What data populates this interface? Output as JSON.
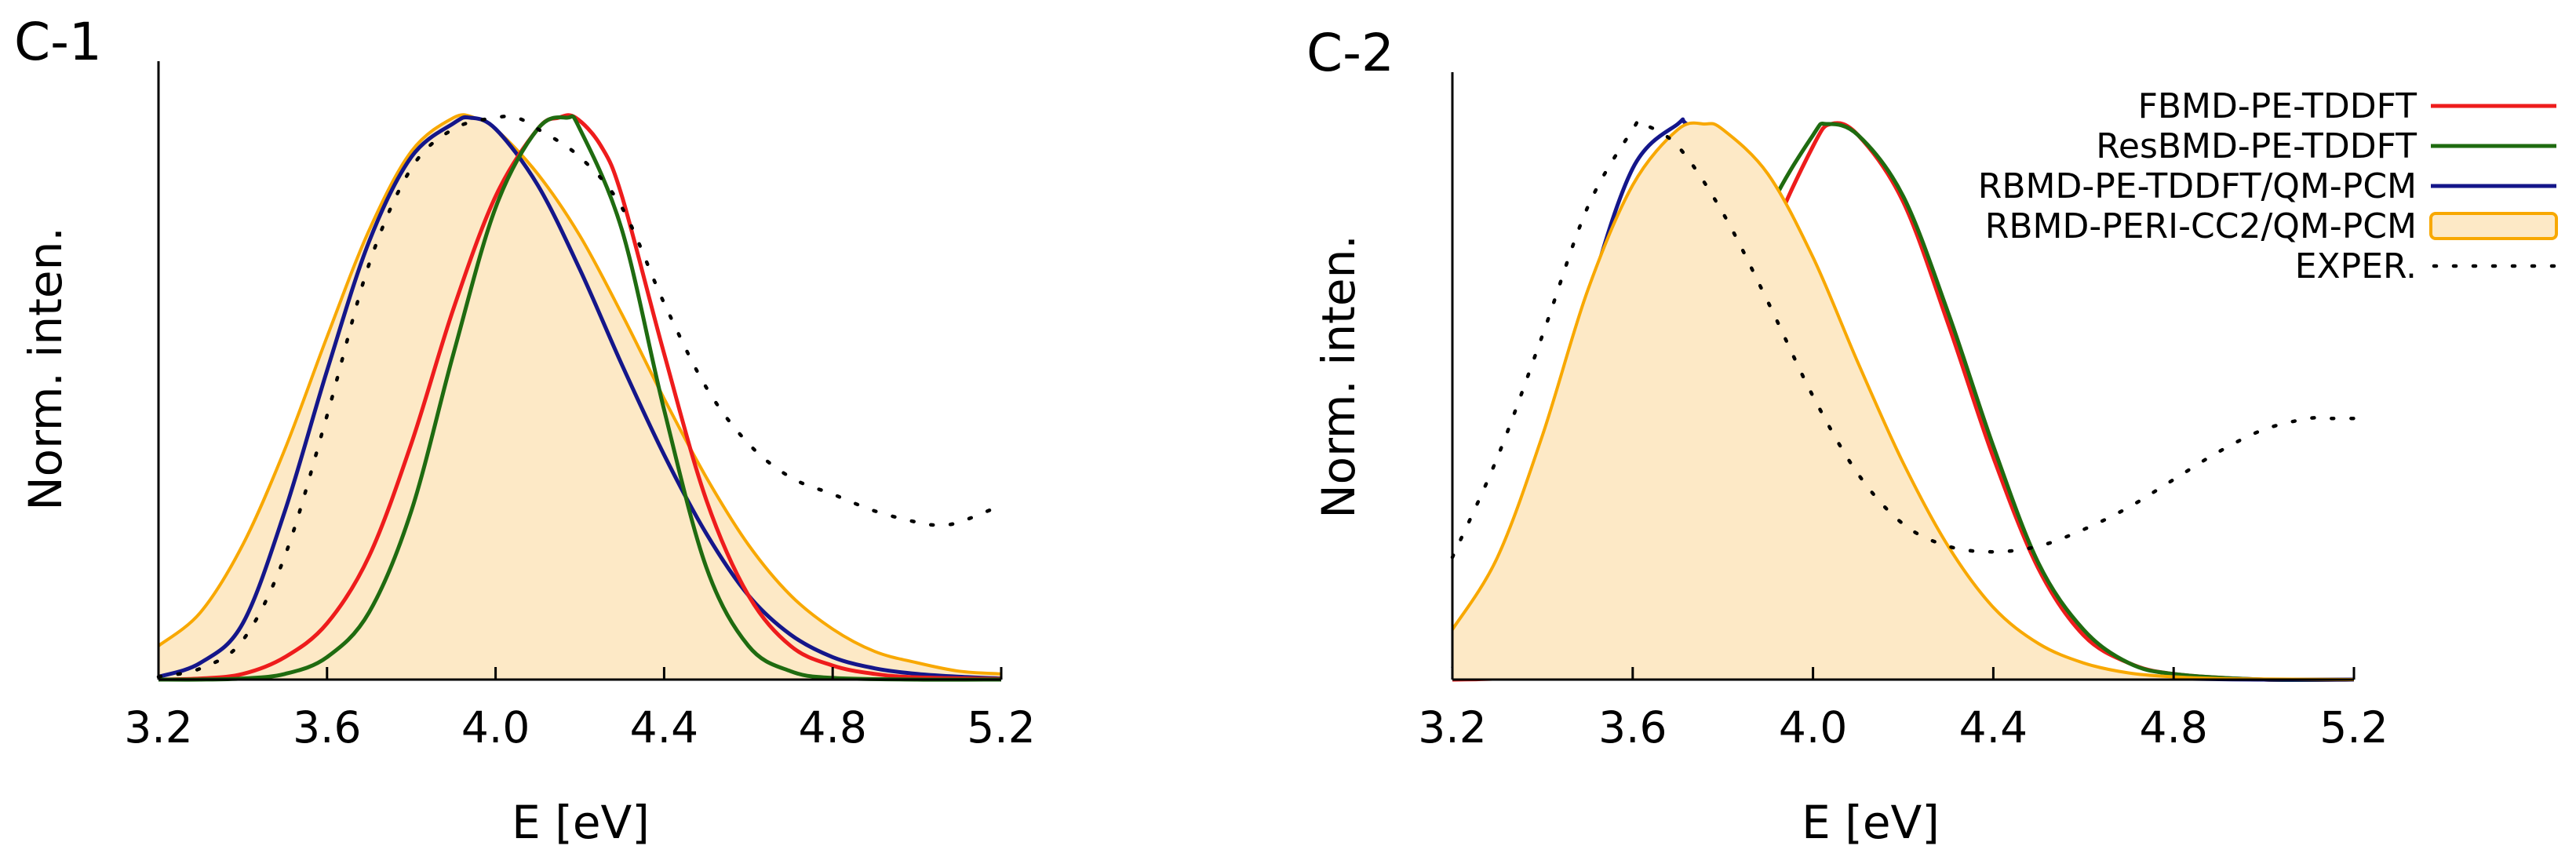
{
  "colors": {
    "FBMD": "#ee1c1c",
    "ResBMD": "#1f6b10",
    "RBMD": "#14168a",
    "RBMD_PERI": "#f8a800",
    "RBMD_PERI_fill": "#fde9c6",
    "EXPER": "#000000"
  },
  "chart_data": [
    {
      "panel": "C-1",
      "type": "line",
      "title": "C-1",
      "xlabel": "E [eV]",
      "ylabel": "Norm. inten.",
      "xlim": [
        3.2,
        5.2
      ],
      "ylim": [
        0,
        1
      ],
      "xticks": [
        "3.2",
        "3.6",
        "4.0",
        "4.4",
        "4.8",
        "5.2"
      ],
      "legend": null,
      "series": [
        {
          "name": "RBMD-PERI-CC2/QM-PCM",
          "key": "RBMD_PERI",
          "style": "filled",
          "x": [
            3.2,
            3.3,
            3.4,
            3.5,
            3.6,
            3.7,
            3.8,
            3.9,
            3.95,
            4.0,
            4.1,
            4.2,
            4.3,
            4.4,
            4.5,
            4.6,
            4.7,
            4.8,
            4.9,
            5.0,
            5.1,
            5.2
          ],
          "y": [
            0.06,
            0.12,
            0.24,
            0.41,
            0.61,
            0.8,
            0.94,
            1.0,
            1.0,
            0.98,
            0.9,
            0.79,
            0.65,
            0.5,
            0.36,
            0.24,
            0.15,
            0.09,
            0.05,
            0.03,
            0.015,
            0.01
          ]
        },
        {
          "name": "RBMD-PE-TDDFT/QM-PCM",
          "key": "RBMD",
          "style": "solid",
          "x": [
            3.2,
            3.3,
            3.4,
            3.5,
            3.6,
            3.7,
            3.8,
            3.9,
            3.94,
            4.0,
            4.1,
            4.2,
            4.3,
            4.4,
            4.5,
            4.6,
            4.7,
            4.8,
            4.9,
            5.0,
            5.1,
            5.2
          ],
          "y": [
            0.005,
            0.03,
            0.1,
            0.3,
            0.55,
            0.78,
            0.93,
            0.99,
            1.0,
            0.98,
            0.88,
            0.73,
            0.56,
            0.4,
            0.26,
            0.15,
            0.08,
            0.04,
            0.02,
            0.01,
            0.005,
            0.002
          ]
        },
        {
          "name": "FBMD-PE-TDDFT",
          "key": "FBMD",
          "style": "solid",
          "x": [
            3.2,
            3.3,
            3.4,
            3.5,
            3.6,
            3.7,
            3.8,
            3.9,
            4.0,
            4.1,
            4.15,
            4.19,
            4.25,
            4.3,
            4.4,
            4.5,
            4.6,
            4.7,
            4.8,
            4.9,
            5.0,
            5.2
          ],
          "y": [
            0,
            0.002,
            0.01,
            0.04,
            0.1,
            0.22,
            0.42,
            0.66,
            0.86,
            0.98,
            1.0,
            1.0,
            0.95,
            0.86,
            0.58,
            0.32,
            0.15,
            0.06,
            0.025,
            0.01,
            0.004,
            0.001
          ]
        },
        {
          "name": "ResBMD-PE-TDDFT",
          "key": "ResBMD",
          "style": "solid",
          "x": [
            3.2,
            3.3,
            3.4,
            3.5,
            3.6,
            3.7,
            3.8,
            3.9,
            4.0,
            4.1,
            4.17,
            4.2,
            4.3,
            4.4,
            4.5,
            4.6,
            4.7,
            4.8,
            5.0,
            5.2
          ],
          "y": [
            0,
            0.0,
            0.002,
            0.01,
            0.04,
            0.12,
            0.3,
            0.58,
            0.84,
            0.98,
            1.0,
            0.98,
            0.8,
            0.48,
            0.2,
            0.06,
            0.015,
            0.003,
            0.0,
            0.0
          ]
        },
        {
          "name": "EXPER.",
          "key": "EXPER",
          "style": "dotted",
          "x": [
            3.2,
            3.3,
            3.4,
            3.5,
            3.6,
            3.7,
            3.8,
            3.9,
            4.0,
            4.05,
            4.1,
            4.2,
            4.3,
            4.4,
            4.5,
            4.6,
            4.7,
            4.8,
            4.9,
            5.0,
            5.05,
            5.1,
            5.2
          ],
          "y": [
            0.005,
            0.02,
            0.07,
            0.22,
            0.47,
            0.74,
            0.91,
            0.98,
            1.0,
            1.0,
            0.98,
            0.93,
            0.84,
            0.67,
            0.52,
            0.42,
            0.36,
            0.33,
            0.3,
            0.28,
            0.275,
            0.28,
            0.31
          ]
        }
      ]
    },
    {
      "panel": "C-2",
      "type": "line",
      "title": "C-2",
      "xlabel": "E [eV]",
      "ylabel": "Norm. inten.",
      "xlim": [
        3.2,
        5.2
      ],
      "ylim": [
        0,
        1
      ],
      "xticks": [
        "3.2",
        "3.6",
        "4.0",
        "4.4",
        "4.8",
        "5.2"
      ],
      "legend": "top-right",
      "series": [
        {
          "name": "FBMD-PE-TDDFT",
          "key": "FBMD",
          "style": "solid",
          "x": [
            3.2,
            3.3,
            3.4,
            3.5,
            3.6,
            3.7,
            3.8,
            3.9,
            4.0,
            4.04,
            4.1,
            4.2,
            4.3,
            4.4,
            4.5,
            4.6,
            4.7,
            4.8,
            5.0,
            5.2
          ],
          "y": [
            0.0,
            0.002,
            0.01,
            0.04,
            0.12,
            0.28,
            0.52,
            0.78,
            0.96,
            1.0,
            0.98,
            0.86,
            0.64,
            0.4,
            0.2,
            0.08,
            0.03,
            0.01,
            0.0,
            0.0
          ]
        },
        {
          "name": "ResBMD-PE-TDDFT",
          "key": "ResBMD",
          "style": "solid",
          "x": [
            3.2,
            3.3,
            3.4,
            3.5,
            3.6,
            3.7,
            3.8,
            3.9,
            4.0,
            4.03,
            4.1,
            4.2,
            4.3,
            4.4,
            4.5,
            4.6,
            4.7,
            4.8,
            5.0,
            5.2
          ],
          "y": [
            0.002,
            0.01,
            0.03,
            0.08,
            0.19,
            0.38,
            0.62,
            0.84,
            0.98,
            1.0,
            0.98,
            0.87,
            0.66,
            0.42,
            0.21,
            0.09,
            0.03,
            0.01,
            0.0,
            0.0
          ]
        },
        {
          "name": "RBMD-PE-TDDFT/QM-PCM",
          "key": "RBMD",
          "style": "solid",
          "x": [
            3.2,
            3.3,
            3.4,
            3.5,
            3.6,
            3.7,
            3.72,
            3.8,
            3.9,
            4.0,
            4.1,
            4.2,
            4.3,
            4.4,
            4.5,
            4.6,
            4.7,
            4.8,
            5.0,
            5.2
          ],
          "y": [
            0.02,
            0.12,
            0.36,
            0.68,
            0.92,
            1.0,
            1.0,
            0.95,
            0.8,
            0.6,
            0.41,
            0.25,
            0.14,
            0.07,
            0.035,
            0.015,
            0.006,
            0.002,
            0.0,
            0.0
          ]
        },
        {
          "name": "RBMD-PERI-CC2/QM-PCM",
          "key": "RBMD_PERI",
          "style": "filled",
          "x": [
            3.2,
            3.3,
            3.4,
            3.5,
            3.6,
            3.7,
            3.76,
            3.8,
            3.9,
            4.0,
            4.1,
            4.2,
            4.3,
            4.4,
            4.5,
            4.6,
            4.7,
            4.8,
            4.9,
            5.0,
            5.2
          ],
          "y": [
            0.09,
            0.22,
            0.44,
            0.7,
            0.89,
            0.99,
            1.0,
            0.99,
            0.91,
            0.76,
            0.57,
            0.39,
            0.24,
            0.13,
            0.065,
            0.03,
            0.012,
            0.005,
            0.002,
            0.001,
            0.0
          ]
        },
        {
          "name": "EXPER.",
          "key": "EXPER",
          "style": "dotted",
          "x": [
            3.2,
            3.3,
            3.4,
            3.5,
            3.6,
            3.62,
            3.7,
            3.8,
            3.9,
            4.0,
            4.1,
            4.2,
            4.3,
            4.4,
            4.5,
            4.6,
            4.7,
            4.8,
            4.9,
            5.0,
            5.1,
            5.15,
            5.2
          ],
          "y": [
            0.22,
            0.4,
            0.62,
            0.85,
            0.99,
            1.0,
            0.96,
            0.84,
            0.68,
            0.51,
            0.37,
            0.28,
            0.24,
            0.23,
            0.24,
            0.27,
            0.31,
            0.36,
            0.41,
            0.45,
            0.47,
            0.47,
            0.47
          ]
        }
      ]
    }
  ]
}
